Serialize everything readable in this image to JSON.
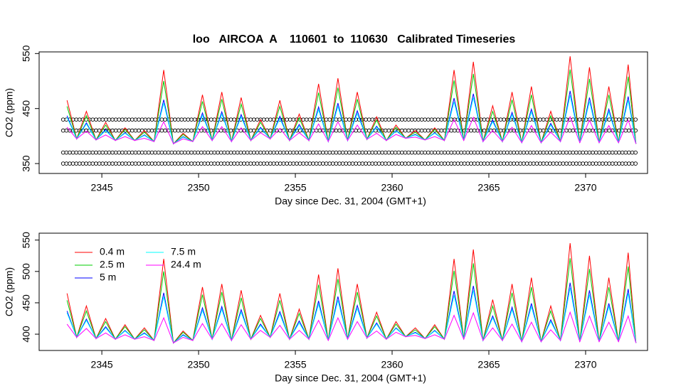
{
  "chart_data": [
    {
      "type": "line",
      "title": "loo   AIRCOA  A    110601  to  110630   Calibrated Timeseries",
      "xlabel": "Day since Dec. 31, 2004 (GMT+1)",
      "ylabel": "CO2 (ppm)",
      "xlim": [
        2341.76,
        2373.2
      ],
      "ylim": [
        332,
        553
      ],
      "xticks": [
        2345,
        2350,
        2355,
        2360,
        2365,
        2370
      ],
      "yticks": [
        350,
        450,
        550
      ],
      "calibration_levels": [
        350,
        370,
        410,
        430
      ],
      "calibration_color": "#000000",
      "x": [
        2343.2,
        2343.7,
        2344.2,
        2344.7,
        2345.2,
        2345.7,
        2346.2,
        2346.7,
        2347.2,
        2347.7,
        2348.2,
        2348.7,
        2349.2,
        2349.7,
        2350.2,
        2350.7,
        2351.2,
        2351.7,
        2352.2,
        2352.7,
        2353.2,
        2353.7,
        2354.2,
        2354.7,
        2355.2,
        2355.7,
        2356.2,
        2356.7,
        2357.2,
        2357.7,
        2358.2,
        2358.7,
        2359.2,
        2359.7,
        2360.2,
        2360.7,
        2361.2,
        2361.7,
        2362.2,
        2362.7,
        2363.2,
        2363.7,
        2364.2,
        2364.7,
        2365.2,
        2365.7,
        2366.2,
        2366.7,
        2367.2,
        2367.7,
        2368.2,
        2368.7,
        2369.2,
        2369.7,
        2370.2,
        2370.7,
        2371.2,
        2371.7,
        2372.2,
        2372.6
      ],
      "series": [
        {
          "color": "#ff0000",
          "values": [
            465,
            395,
            445,
            393,
            425,
            392,
            415,
            392,
            410,
            390,
            520,
            386,
            405,
            390,
            475,
            392,
            480,
            390,
            470,
            392,
            430,
            395,
            465,
            392,
            440,
            392,
            495,
            390,
            505,
            392,
            480,
            394,
            435,
            392,
            420,
            396,
            410,
            393,
            415,
            392,
            520,
            392,
            535,
            390,
            455,
            390,
            480,
            388,
            490,
            388,
            445,
            390,
            545,
            388,
            525,
            388,
            490,
            388,
            530,
            386
          ]
        },
        {
          "color": "#00cd00",
          "values": [
            454,
            395,
            437,
            393,
            420,
            392,
            412,
            392,
            407,
            390,
            500,
            386,
            403,
            390,
            463,
            392,
            467,
            390,
            458,
            392,
            425,
            395,
            454,
            392,
            433,
            392,
            479,
            390,
            488,
            392,
            467,
            394,
            429,
            392,
            416,
            396,
            407,
            393,
            412,
            392,
            501,
            392,
            513,
            390,
            445,
            390,
            466,
            388,
            475,
            388,
            437,
            390,
            521,
            388,
            504,
            388,
            475,
            388,
            508,
            386
          ]
        },
        {
          "color": "#0000ff",
          "values": [
            437,
            395,
            424,
            393,
            412,
            392,
            406,
            392,
            402,
            390,
            466,
            386,
            399,
            390,
            442,
            392,
            444,
            390,
            439,
            392,
            416,
            395,
            436,
            392,
            421,
            392,
            453,
            390,
            460,
            392,
            446,
            394,
            418,
            392,
            410,
            396,
            403,
            393,
            406,
            392,
            469,
            392,
            477,
            390,
            429,
            390,
            443,
            388,
            449,
            388,
            423,
            390,
            482,
            388,
            470,
            388,
            449,
            388,
            472,
            386
          ]
        },
        {
          "color": "#00ffff",
          "values": [
            434,
            395,
            422,
            393,
            410,
            392,
            405,
            392,
            401,
            390,
            460,
            386,
            398,
            390,
            438,
            392,
            440,
            390,
            435,
            392,
            414,
            395,
            432,
            392,
            418,
            392,
            448,
            390,
            454,
            392,
            441,
            394,
            416,
            392,
            409,
            396,
            402,
            393,
            405,
            392,
            462,
            392,
            470,
            390,
            426,
            390,
            439,
            388,
            444,
            388,
            420,
            390,
            474,
            388,
            463,
            388,
            444,
            388,
            465,
            386
          ]
        },
        {
          "color": "#ff00ff",
          "values": [
            416,
            395,
            409,
            393,
            402,
            392,
            399,
            392,
            396,
            390,
            426,
            386,
            395,
            390,
            417,
            392,
            417,
            390,
            415,
            392,
            406,
            395,
            414,
            392,
            406,
            392,
            422,
            390,
            426,
            392,
            420,
            394,
            405,
            392,
            403,
            396,
            398,
            393,
            399,
            392,
            430,
            392,
            434,
            390,
            410,
            390,
            416,
            388,
            419,
            388,
            407,
            390,
            435,
            388,
            429,
            388,
            419,
            388,
            429,
            386
          ]
        }
      ]
    },
    {
      "type": "line",
      "xlabel": "Day since Dec. 31, 2004 (GMT+1)",
      "ylabel": "CO2 (ppm)",
      "xlim": [
        2341.76,
        2373.2
      ],
      "ylim": [
        374,
        561
      ],
      "xticks": [
        2345,
        2350,
        2355,
        2360,
        2365,
        2370
      ],
      "yticks": [
        400,
        450,
        500,
        550
      ],
      "legend": "upper left",
      "x": [
        2343.2,
        2343.7,
        2344.2,
        2344.7,
        2345.2,
        2345.7,
        2346.2,
        2346.7,
        2347.2,
        2347.7,
        2348.2,
        2348.7,
        2349.2,
        2349.7,
        2350.2,
        2350.7,
        2351.2,
        2351.7,
        2352.2,
        2352.7,
        2353.2,
        2353.7,
        2354.2,
        2354.7,
        2355.2,
        2355.7,
        2356.2,
        2356.7,
        2357.2,
        2357.7,
        2358.2,
        2358.7,
        2359.2,
        2359.7,
        2360.2,
        2360.7,
        2361.2,
        2361.7,
        2362.2,
        2362.7,
        2363.2,
        2363.7,
        2364.2,
        2364.7,
        2365.2,
        2365.7,
        2366.2,
        2366.7,
        2367.2,
        2367.7,
        2368.2,
        2368.7,
        2369.2,
        2369.7,
        2370.2,
        2370.7,
        2371.2,
        2371.7,
        2372.2,
        2372.6
      ],
      "series": [
        {
          "name": "0.4 m",
          "color": "#ff0000",
          "values": [
            465,
            395,
            445,
            393,
            425,
            392,
            415,
            392,
            410,
            390,
            520,
            386,
            405,
            390,
            475,
            392,
            480,
            390,
            470,
            392,
            430,
            395,
            465,
            392,
            440,
            392,
            495,
            390,
            505,
            392,
            480,
            394,
            435,
            392,
            420,
            396,
            410,
            393,
            415,
            392,
            520,
            392,
            535,
            390,
            455,
            390,
            480,
            388,
            490,
            388,
            445,
            390,
            545,
            388,
            525,
            388,
            490,
            388,
            530,
            386
          ]
        },
        {
          "name": "2.5 m",
          "color": "#00cd00",
          "values": [
            454,
            395,
            437,
            393,
            420,
            392,
            412,
            392,
            407,
            390,
            500,
            386,
            403,
            390,
            463,
            392,
            467,
            390,
            458,
            392,
            425,
            395,
            454,
            392,
            433,
            392,
            479,
            390,
            488,
            392,
            467,
            394,
            429,
            392,
            416,
            396,
            407,
            393,
            412,
            392,
            501,
            392,
            513,
            390,
            445,
            390,
            466,
            388,
            475,
            388,
            437,
            390,
            521,
            388,
            504,
            388,
            475,
            388,
            508,
            386
          ]
        },
        {
          "name": "5 m",
          "color": "#0000ff",
          "values": [
            437,
            395,
            424,
            393,
            412,
            392,
            406,
            392,
            402,
            390,
            466,
            386,
            399,
            390,
            442,
            392,
            444,
            390,
            439,
            392,
            416,
            395,
            436,
            392,
            421,
            392,
            453,
            390,
            460,
            392,
            446,
            394,
            418,
            392,
            410,
            396,
            403,
            393,
            406,
            392,
            469,
            392,
            477,
            390,
            429,
            390,
            443,
            388,
            449,
            388,
            423,
            390,
            482,
            388,
            470,
            388,
            449,
            388,
            472,
            386
          ]
        },
        {
          "name": "7.5 m",
          "color": "#00ffff",
          "values": [
            434,
            395,
            422,
            393,
            410,
            392,
            405,
            392,
            401,
            390,
            460,
            386,
            398,
            390,
            438,
            392,
            440,
            390,
            435,
            392,
            414,
            395,
            432,
            392,
            418,
            392,
            448,
            390,
            454,
            392,
            441,
            394,
            416,
            392,
            409,
            396,
            402,
            393,
            405,
            392,
            462,
            392,
            470,
            390,
            426,
            390,
            439,
            388,
            444,
            388,
            420,
            390,
            474,
            388,
            463,
            388,
            444,
            388,
            465,
            386
          ]
        },
        {
          "name": "24.4 m",
          "color": "#ff00ff",
          "values": [
            416,
            395,
            409,
            393,
            402,
            392,
            399,
            392,
            396,
            390,
            426,
            386,
            395,
            390,
            417,
            392,
            417,
            390,
            415,
            392,
            406,
            395,
            414,
            392,
            406,
            392,
            422,
            390,
            426,
            392,
            420,
            394,
            405,
            392,
            403,
            396,
            398,
            393,
            399,
            392,
            430,
            392,
            434,
            390,
            410,
            390,
            416,
            388,
            419,
            388,
            407,
            390,
            435,
            388,
            429,
            388,
            419,
            388,
            429,
            386
          ]
        }
      ]
    }
  ]
}
